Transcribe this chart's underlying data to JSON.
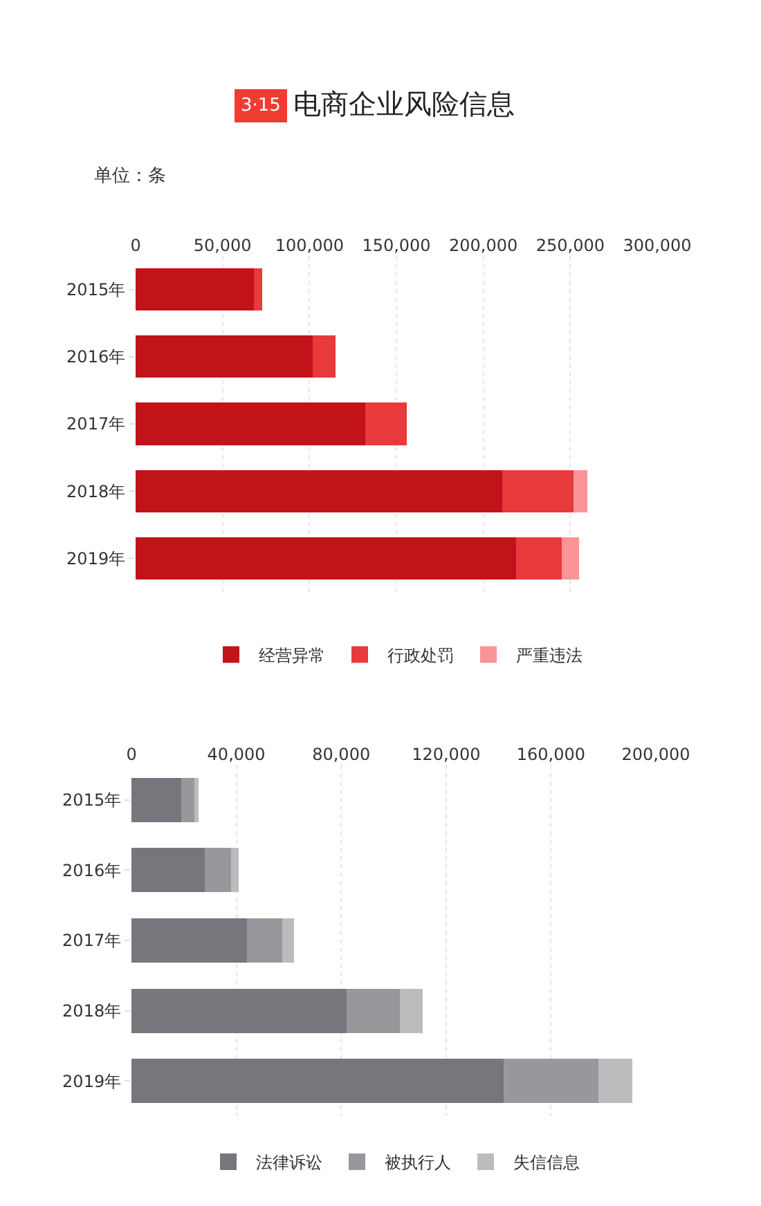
{
  "chart_data": [
    {
      "type": "bar",
      "title": "电商企业风险信息",
      "subtitle": "单位：条",
      "annotations": [
        "3·15"
      ],
      "orientation": "horizontal",
      "stacked": true,
      "categories": [
        "2015年",
        "2016年",
        "2017年",
        "2018年",
        "2019年"
      ],
      "series": [
        {
          "name": "经营异常",
          "color": "#c0141a",
          "values": [
            68000,
            102000,
            132000,
            211000,
            219000
          ]
        },
        {
          "name": "行政处罚",
          "color": "#e8393b",
          "values": [
            5000,
            13000,
            24000,
            41000,
            26000
          ]
        },
        {
          "name": "严重违法",
          "color": "#fa9496",
          "values": [
            null,
            null,
            null,
            8000,
            10000
          ]
        }
      ],
      "xlim": [
        0,
        300000
      ],
      "xticks": [
        0,
        {
          "value": 50000,
          "label": "50,000"
        },
        {
          "value": 100000,
          "label": "100,000"
        },
        {
          "value": 150000,
          "label": "150,000"
        },
        {
          "value": 200000,
          "label": "200,000"
        },
        {
          "value": 250000,
          "label": "250,000"
        },
        {
          "value": 300000,
          "label": "300,000"
        }
      ],
      "grid": "x",
      "legend": "bottom"
    },
    {
      "type": "bar",
      "orientation": "horizontal",
      "stacked": true,
      "categories": [
        "2015年",
        "2016年",
        "2017年",
        "2018年",
        "2019年"
      ],
      "series": [
        {
          "name": "法律诉讼",
          "color": "#76767c",
          "values": [
            19000,
            28000,
            44000,
            82000,
            142000
          ]
        },
        {
          "name": "被执行人",
          "color": "#98989c",
          "values": [
            5000,
            10000,
            13500,
            20500,
            36000
          ]
        },
        {
          "name": "失信信息",
          "color": "#bcbcbe",
          "values": [
            1500,
            3000,
            4500,
            8500,
            13000
          ]
        }
      ],
      "xlim": [
        0,
        200000
      ],
      "xticks": [
        0,
        {
          "value": 40000,
          "label": "40,000"
        },
        {
          "value": 80000,
          "label": "80,000"
        },
        {
          "value": 120000,
          "label": "120,000"
        },
        {
          "value": 160000,
          "label": "160,000"
        },
        {
          "value": 200000,
          "label": "200,000"
        }
      ],
      "grid": "x",
      "legend": "bottom"
    }
  ]
}
